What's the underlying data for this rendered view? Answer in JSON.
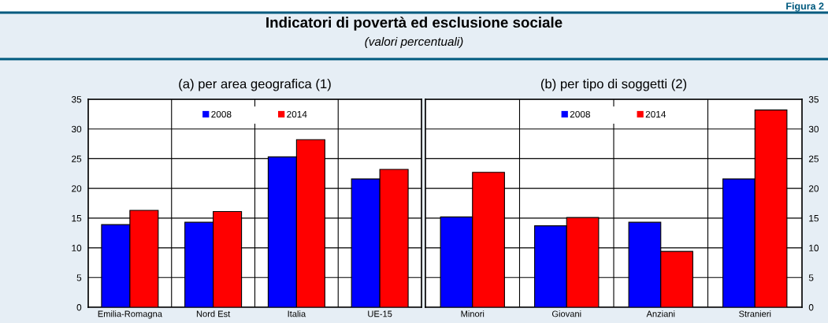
{
  "chart_data": [
    {
      "type": "bar",
      "title": "(a) per area geografica (1)",
      "annotations": [
        "Figura 2",
        "Indicatori di povertà ed esclusione sociale",
        "(valori percentuali)"
      ],
      "categories": [
        "Emilia-Romagna",
        "Nord Est",
        "Italia",
        "UE-15"
      ],
      "series": [
        {
          "name": "2008",
          "color": "#0000ff",
          "values": [
            13.9,
            14.3,
            25.3,
            21.6
          ]
        },
        {
          "name": "2014",
          "color": "#ff0000",
          "values": [
            16.3,
            16.1,
            28.2,
            23.2
          ]
        }
      ],
      "ylim": [
        0,
        35
      ],
      "yticks": [
        0,
        5,
        10,
        15,
        20,
        25,
        30,
        35
      ],
      "grid": true,
      "legend": "top"
    },
    {
      "type": "bar",
      "title": "(b) per tipo di soggetti (2)",
      "categories": [
        "Minori",
        "Giovani",
        "Anziani",
        "Stranieri"
      ],
      "series": [
        {
          "name": "2008",
          "color": "#0000ff",
          "values": [
            15.2,
            13.7,
            14.3,
            21.6
          ]
        },
        {
          "name": "2014",
          "color": "#ff0000",
          "values": [
            22.7,
            15.1,
            9.4,
            33.2
          ]
        }
      ],
      "ylim": [
        0,
        35
      ],
      "yticks": [
        0,
        5,
        10,
        15,
        20,
        25,
        30,
        35
      ],
      "grid": true,
      "legend": "top"
    }
  ]
}
